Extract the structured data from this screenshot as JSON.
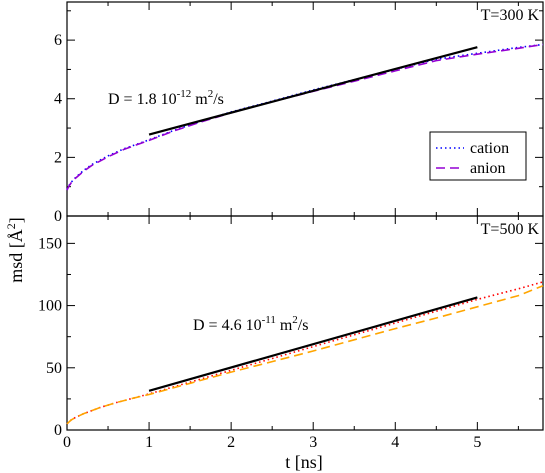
{
  "chart_data": [
    {
      "type": "line",
      "panel": "top",
      "temperature_label": "T=300 K",
      "temperature_color": "#0000ff",
      "xlim": [
        0,
        5.8
      ],
      "ylim": [
        0,
        7.3
      ],
      "yticks": [
        "0",
        "2",
        "4",
        "6"
      ],
      "ytick_values": [
        0,
        2,
        4,
        6
      ],
      "annotation": {
        "text": "D = 1.8 10",
        "exp": "-12",
        "unit_tail": " m",
        "unit_exp": "2",
        "unit_end": "/s"
      },
      "fit": {
        "name": "fit",
        "color": "#000000",
        "x": [
          1.0,
          5.0
        ],
        "y": [
          2.78,
          5.76
        ]
      },
      "series": [
        {
          "name": "cation",
          "color": "#0000ff",
          "dash": "dotted",
          "x": [
            0,
            0.02,
            0.05,
            0.1,
            0.2,
            0.3,
            0.5,
            0.7,
            1.0,
            1.3,
            1.6,
            2.0,
            2.5,
            3.0,
            3.5,
            4.0,
            4.5,
            5.0,
            5.5,
            5.8
          ],
          "y": [
            0.9,
            1.02,
            1.15,
            1.3,
            1.55,
            1.75,
            2.05,
            2.3,
            2.6,
            2.92,
            3.2,
            3.55,
            3.92,
            4.3,
            4.65,
            5.0,
            5.35,
            5.55,
            5.75,
            5.85
          ]
        },
        {
          "name": "anion",
          "color": "#9400d3",
          "dash": "dashed",
          "x": [
            0,
            0.02,
            0.05,
            0.1,
            0.2,
            0.3,
            0.5,
            0.7,
            1.0,
            1.3,
            1.6,
            2.0,
            2.5,
            3.0,
            3.5,
            4.0,
            4.5,
            5.0,
            5.5,
            5.8
          ],
          "y": [
            0.88,
            1.0,
            1.13,
            1.28,
            1.52,
            1.72,
            2.02,
            2.28,
            2.58,
            2.9,
            3.18,
            3.52,
            3.9,
            4.25,
            4.6,
            4.95,
            5.3,
            5.52,
            5.72,
            5.85
          ]
        }
      ],
      "legend": [
        "cation",
        "anion"
      ]
    },
    {
      "type": "line",
      "panel": "bottom",
      "temperature_label": "T=500 K",
      "temperature_color": "#ff0000",
      "xlim": [
        0,
        5.8
      ],
      "ylim": [
        0,
        172
      ],
      "yticks": [
        "0",
        "50",
        "100",
        "150"
      ],
      "ytick_values": [
        0,
        50,
        100,
        150
      ],
      "xticks": [
        "0",
        "1",
        "2",
        "3",
        "4",
        "5"
      ],
      "xtick_values": [
        0,
        1,
        2,
        3,
        4,
        5
      ],
      "xlabel": "t [ns]",
      "annotation": {
        "text": "D = 4.6 10",
        "exp": "-11",
        "unit_tail": " m",
        "unit_exp": "2",
        "unit_end": "/s"
      },
      "fit": {
        "name": "fit",
        "color": "#000000",
        "x": [
          1.0,
          5.0
        ],
        "y": [
          31.5,
          106.5
        ]
      },
      "series": [
        {
          "name": "cation",
          "color": "#ff0000",
          "dash": "dotted",
          "x": [
            0,
            0.05,
            0.1,
            0.2,
            0.4,
            0.6,
            0.8,
            1.0,
            1.5,
            2.0,
            2.5,
            3.0,
            3.5,
            4.0,
            4.5,
            5.0,
            5.5,
            5.8
          ],
          "y": [
            5,
            8,
            10,
            13,
            18,
            22,
            25.5,
            29,
            38.5,
            48,
            57.5,
            67,
            76.5,
            86,
            95.5,
            105,
            113.5,
            119
          ]
        },
        {
          "name": "anion",
          "color": "#ffa500",
          "dash": "dashed",
          "x": [
            0,
            0.05,
            0.1,
            0.2,
            0.4,
            0.6,
            0.8,
            1.0,
            1.5,
            2.0,
            2.5,
            3.0,
            3.5,
            4.0,
            4.5,
            5.0,
            5.5,
            5.8
          ],
          "y": [
            5,
            8,
            10,
            13,
            18,
            22,
            25.5,
            28.5,
            37.5,
            46.5,
            55,
            63.5,
            72.5,
            81.5,
            90,
            99,
            108,
            116
          ]
        }
      ]
    }
  ],
  "ylabel_main": "msd [",
  "ylabel_unit": "Å",
  "ylabel_exp": "2",
  "ylabel_close": "]"
}
